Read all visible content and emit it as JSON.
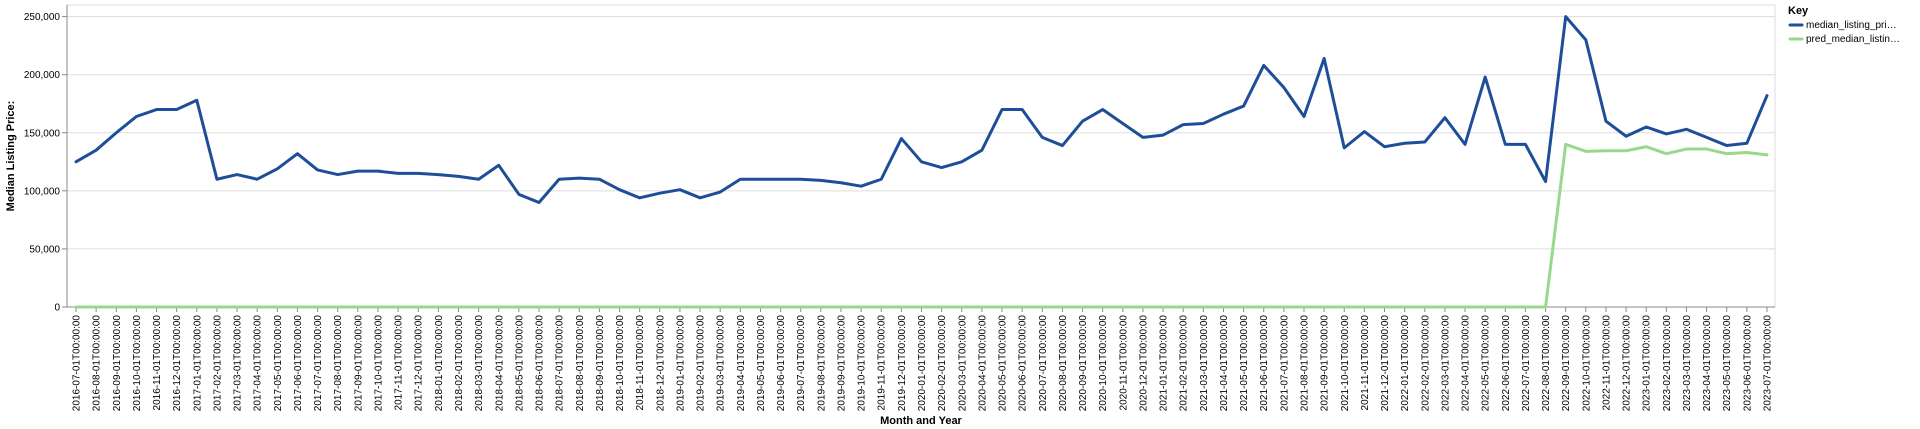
{
  "chart_data": {
    "type": "line",
    "xlabel": "Month and Year",
    "ylabel": "Median Listing Price:",
    "ylim": [
      0,
      260000
    ],
    "y_ticks": [
      0,
      50000,
      100000,
      150000,
      200000,
      250000
    ],
    "y_tick_labels": [
      "0",
      "50,000",
      "100,000",
      "150,000",
      "200,000",
      "250,000"
    ],
    "grid": true,
    "legend": {
      "title": "Key",
      "placement": "top-right",
      "entries": [
        "median_listing_pri…",
        "pred_median_listin…"
      ]
    },
    "x": [
      "2016-07-01T00:00:00",
      "2016-08-01T00:00:00",
      "2016-09-01T00:00:00",
      "2016-10-01T00:00:00",
      "2016-11-01T00:00:00",
      "2016-12-01T00:00:00",
      "2017-01-01T00:00:00",
      "2017-02-01T00:00:00",
      "2017-03-01T00:00:00",
      "2017-04-01T00:00:00",
      "2017-05-01T00:00:00",
      "2017-06-01T00:00:00",
      "2017-07-01T00:00:00",
      "2017-08-01T00:00:00",
      "2017-09-01T00:00:00",
      "2017-10-01T00:00:00",
      "2017-11-01T00:00:00",
      "2017-12-01T00:00:00",
      "2018-01-01T00:00:00",
      "2018-02-01T00:00:00",
      "2018-03-01T00:00:00",
      "2018-04-01T00:00:00",
      "2018-05-01T00:00:00",
      "2018-06-01T00:00:00",
      "2018-07-01T00:00:00",
      "2018-08-01T00:00:00",
      "2018-09-01T00:00:00",
      "2018-10-01T00:00:00",
      "2018-11-01T00:00:00",
      "2018-12-01T00:00:00",
      "2019-01-01T00:00:00",
      "2019-02-01T00:00:00",
      "2019-03-01T00:00:00",
      "2019-04-01T00:00:00",
      "2019-05-01T00:00:00",
      "2019-06-01T00:00:00",
      "2019-07-01T00:00:00",
      "2019-08-01T00:00:00",
      "2019-09-01T00:00:00",
      "2019-10-01T00:00:00",
      "2019-11-01T00:00:00",
      "2019-12-01T00:00:00",
      "2020-01-01T00:00:00",
      "2020-02-01T00:00:00",
      "2020-03-01T00:00:00",
      "2020-04-01T00:00:00",
      "2020-05-01T00:00:00",
      "2020-06-01T00:00:00",
      "2020-07-01T00:00:00",
      "2020-08-01T00:00:00",
      "2020-09-01T00:00:00",
      "2020-10-01T00:00:00",
      "2020-11-01T00:00:00",
      "2020-12-01T00:00:00",
      "2021-01-01T00:00:00",
      "2021-02-01T00:00:00",
      "2021-03-01T00:00:00",
      "2021-04-01T00:00:00",
      "2021-05-01T00:00:00",
      "2021-06-01T00:00:00",
      "2021-07-01T00:00:00",
      "2021-08-01T00:00:00",
      "2021-09-01T00:00:00",
      "2021-10-01T00:00:00",
      "2021-11-01T00:00:00",
      "2021-12-01T00:00:00",
      "2022-01-01T00:00:00",
      "2022-02-01T00:00:00",
      "2022-03-01T00:00:00",
      "2022-04-01T00:00:00",
      "2022-05-01T00:00:00",
      "2022-06-01T00:00:00",
      "2022-07-01T00:00:00",
      "2022-08-01T00:00:00",
      "2022-09-01T00:00:00",
      "2022-10-01T00:00:00",
      "2022-11-01T00:00:00",
      "2022-12-01T00:00:00",
      "2023-01-01T00:00:00",
      "2023-02-01T00:00:00",
      "2023-03-01T00:00:00",
      "2023-04-01T00:00:00",
      "2023-05-01T00:00:00",
      "2023-06-01T00:00:00",
      "2023-07-01T00:00:00"
    ],
    "series": [
      {
        "name": "median_listing_pri…",
        "color": "#1f4e99",
        "values": [
          125000,
          135000,
          150000,
          164000,
          170000,
          170000,
          178000,
          110000,
          114000,
          110000,
          119000,
          132000,
          118000,
          114000,
          117000,
          117000,
          115000,
          115000,
          114000,
          112500,
          110000,
          122000,
          97000,
          90000,
          110000,
          111000,
          110000,
          101000,
          94000,
          98000,
          101000,
          94000,
          99000,
          110000,
          110000,
          110000,
          110000,
          109000,
          107000,
          104000,
          110000,
          145000,
          125000,
          120000,
          125000,
          135000,
          170000,
          170000,
          146000,
          139000,
          160000,
          170000,
          158000,
          146000,
          148000,
          157000,
          158000,
          166000,
          173000,
          208000,
          189000,
          164000,
          214000,
          137000,
          151000,
          138000,
          141000,
          142000,
          163000,
          140000,
          198000,
          140000,
          140000,
          108000,
          250000,
          230000,
          160000,
          147000,
          155000,
          149000,
          153000,
          146000,
          139000,
          141000,
          182000
        ]
      },
      {
        "name": "pred_median_listin…",
        "color": "#98d88c",
        "values": [
          0,
          0,
          0,
          0,
          0,
          0,
          0,
          0,
          0,
          0,
          0,
          0,
          0,
          0,
          0,
          0,
          0,
          0,
          0,
          0,
          0,
          0,
          0,
          0,
          0,
          0,
          0,
          0,
          0,
          0,
          0,
          0,
          0,
          0,
          0,
          0,
          0,
          0,
          0,
          0,
          0,
          0,
          0,
          0,
          0,
          0,
          0,
          0,
          0,
          0,
          0,
          0,
          0,
          0,
          0,
          0,
          0,
          0,
          0,
          0,
          0,
          0,
          0,
          0,
          0,
          0,
          0,
          0,
          0,
          0,
          0,
          0,
          0,
          0,
          140000,
          134000,
          134500,
          134500,
          138000,
          132000,
          136000,
          136000,
          132000,
          133000,
          131000
        ]
      }
    ]
  }
}
